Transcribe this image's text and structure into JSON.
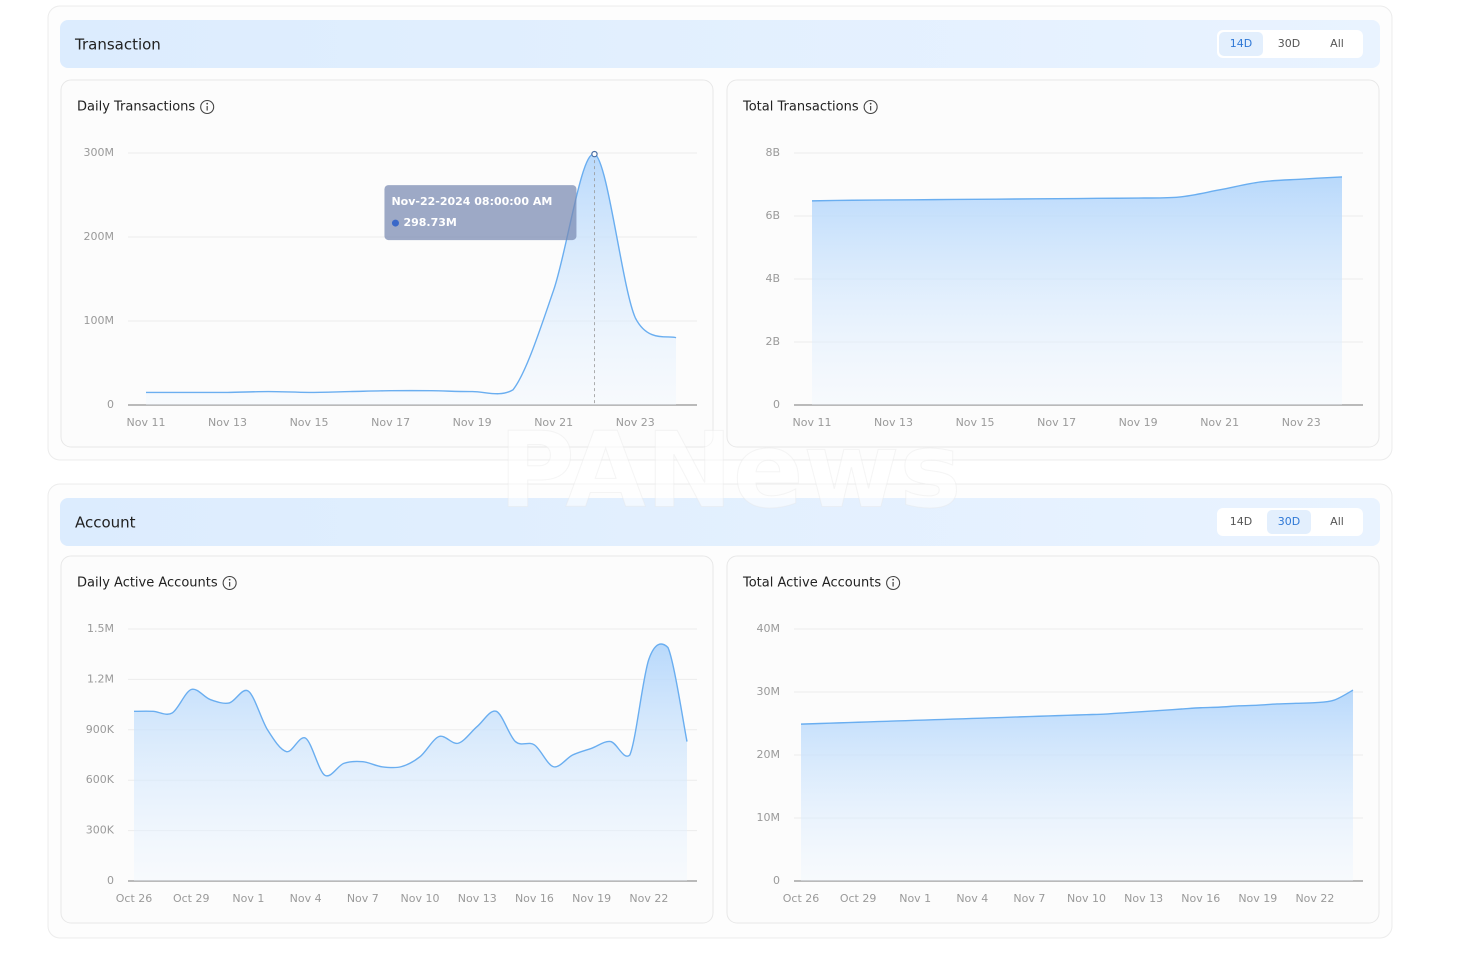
{
  "sections": [
    {
      "title": "Transaction",
      "tabs": [
        "14D",
        "30D",
        "All"
      ],
      "active_tab": "14D"
    },
    {
      "title": "Account",
      "tabs": [
        "14D",
        "30D",
        "All"
      ],
      "active_tab": "30D"
    }
  ],
  "watermark": "PANews",
  "chart_data": [
    {
      "type": "area",
      "title": "Daily Transactions",
      "categories": [
        "Nov 11",
        null,
        "Nov 13",
        null,
        "Nov 15",
        null,
        "Nov 17",
        null,
        "Nov 19",
        null,
        "Nov 21",
        null,
        "Nov 23",
        null
      ],
      "values": [
        15000000,
        15000000,
        15000000,
        16000000,
        15000000,
        16000000,
        17000000,
        17000000,
        16000000,
        18000000,
        137000000,
        298730000,
        104000000,
        80000000
      ],
      "ylim": [
        0,
        300000000
      ],
      "yticks": [
        0,
        {
          "value": 100000000,
          "label": "100M"
        },
        {
          "value": 200000000,
          "label": "200M"
        },
        {
          "value": 300000000,
          "label": "300M"
        }
      ],
      "grid": true,
      "color": "#6aaef0",
      "tooltip": {
        "title": "Nov-22-2024 08:00:00 AM",
        "text": "298.73M"
      }
    },
    {
      "type": "area",
      "title": "Total Transactions",
      "categories": [
        "Nov 11",
        null,
        "Nov 13",
        null,
        "Nov 15",
        null,
        "Nov 17",
        null,
        "Nov 19",
        null,
        "Nov 21",
        null,
        "Nov 23",
        null
      ],
      "values": [
        6480000000,
        6500000000,
        6510000000,
        6520000000,
        6530000000,
        6540000000,
        6550000000,
        6560000000,
        6570000000,
        6600000000,
        6830000000,
        7080000000,
        7170000000,
        7240000000
      ],
      "ylim": [
        0,
        8000000000
      ],
      "yticks": [
        0,
        {
          "value": 2000000000,
          "label": "2B"
        },
        {
          "value": 4000000000,
          "label": "4B"
        },
        {
          "value": 6000000000,
          "label": "6B"
        },
        {
          "value": 8000000000,
          "label": "8B"
        }
      ],
      "grid": true,
      "color": "#6aaef0"
    },
    {
      "type": "area",
      "title": "Daily Active Accounts",
      "categories": [
        "Oct 26",
        null,
        null,
        "Oct 29",
        null,
        null,
        "Nov 1",
        null,
        null,
        "Nov 4",
        null,
        null,
        "Nov 7",
        null,
        null,
        "Nov 10",
        null,
        null,
        "Nov 13",
        null,
        null,
        "Nov 16",
        null,
        null,
        "Nov 19",
        null,
        null,
        "Nov 22",
        null,
        null
      ],
      "values": [
        1010000,
        1010000,
        1000000,
        1140000,
        1080000,
        1060000,
        1130000,
        900000,
        770000,
        850000,
        630000,
        700000,
        710000,
        680000,
        680000,
        740000,
        860000,
        820000,
        920000,
        1010000,
        830000,
        810000,
        680000,
        750000,
        790000,
        830000,
        750000,
        1320000,
        1390000,
        830000
      ],
      "ylim": [
        0,
        1500000
      ],
      "yticks": [
        0,
        {
          "value": 300000,
          "label": "300K"
        },
        {
          "value": 600000,
          "label": "600K"
        },
        {
          "value": 900000,
          "label": "900K"
        },
        {
          "value": 1200000,
          "label": "1.2M"
        },
        {
          "value": 1500000,
          "label": "1.5M"
        }
      ],
      "grid": true,
      "color": "#6aaef0"
    },
    {
      "type": "area",
      "title": "Total Active Accounts",
      "categories": [
        "Oct 26",
        null,
        null,
        "Oct 29",
        null,
        null,
        "Nov 1",
        null,
        null,
        "Nov 4",
        null,
        null,
        "Nov 7",
        null,
        null,
        "Nov 10",
        null,
        null,
        "Nov 13",
        null,
        null,
        "Nov 16",
        null,
        null,
        "Nov 19",
        null,
        null,
        "Nov 22",
        null,
        null
      ],
      "values": [
        24900000,
        25000000,
        25100000,
        25200000,
        25300000,
        25400000,
        25500000,
        25600000,
        25700000,
        25800000,
        25900000,
        26000000,
        26100000,
        26200000,
        26300000,
        26400000,
        26500000,
        26700000,
        26900000,
        27100000,
        27300000,
        27500000,
        27600000,
        27800000,
        27900000,
        28100000,
        28200000,
        28300000,
        28700000,
        30300000
      ],
      "ylim": [
        0,
        40000000
      ],
      "yticks": [
        0,
        {
          "value": 10000000,
          "label": "10M"
        },
        {
          "value": 20000000,
          "label": "20M"
        },
        {
          "value": 30000000,
          "label": "30M"
        },
        {
          "value": 40000000,
          "label": "40M"
        }
      ],
      "grid": true,
      "color": "#6aaef0"
    }
  ]
}
